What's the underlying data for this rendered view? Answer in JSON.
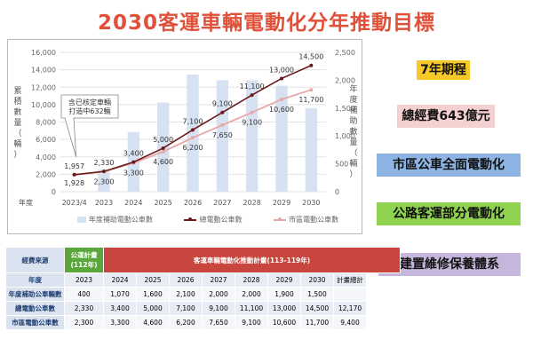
{
  "title": "2030客運車輛電動化分年推動目標",
  "side_labels": [
    "7年期程",
    "總經費643億元",
    "市區公車全面電動化",
    "公路客運部分電動化",
    "建置維修保養體系"
  ],
  "chart_data": {
    "type": "bar+line",
    "categories": [
      "2023/4",
      "2023",
      "2024",
      "2025",
      "2026",
      "2027",
      "2028",
      "2029",
      "2030"
    ],
    "xlabel": "年度",
    "ylabel": "累積數量（輛）",
    "y2label": "年度補助數量（輛）",
    "ylim": [
      0,
      16000
    ],
    "y2lim": [
      0,
      2500
    ],
    "yticks": [
      "0",
      "2,000",
      "4,000",
      "6,000",
      "8,000",
      "10,000",
      "12,000",
      "14,000",
      "16,000"
    ],
    "y2ticks": [
      "0",
      "500",
      "1,000",
      "1,500",
      "2,000",
      "2,500"
    ],
    "series": [
      {
        "name": "年度補助電動公車數",
        "kind": "bar",
        "axis": "right",
        "color": "#d6e1f1",
        "values": [
          null,
          400,
          1070,
          1600,
          2100,
          2000,
          2000,
          1900,
          1500
        ]
      },
      {
        "name": "總電動公車數",
        "kind": "line",
        "axis": "left",
        "color": "#6b1a1a",
        "values": [
          1957,
          2330,
          3400,
          5000,
          7100,
          9100,
          11100,
          13000,
          14500
        ],
        "labels": [
          "1,957",
          "2,330",
          "3,400",
          "5,000",
          "7,100",
          "9,100",
          "11,100",
          "13,000",
          "14,500"
        ]
      },
      {
        "name": "市區電動公車數",
        "kind": "line",
        "axis": "left",
        "color": "#e8a7a7",
        "values": [
          1928,
          2300,
          3300,
          4600,
          6200,
          7650,
          9100,
          10600,
          11700
        ],
        "labels": [
          "1,928",
          "2,300",
          "3,300",
          "4,600",
          "6,200",
          "7,650",
          "9,100",
          "10,600",
          "11,700"
        ]
      }
    ],
    "callout": "含已核定車輛\n打造中632輛",
    "grid": true,
    "legend_position": "bottom"
  },
  "table": {
    "header": {
      "source": "經費來源",
      "plan_a": "公運計畫\n(112年)",
      "plan_b": "客運車輛電動化推動計畫(113-119年)"
    },
    "year_row": {
      "label": "年度",
      "values": [
        "2023",
        "2024",
        "2025",
        "2026",
        "2027",
        "2028",
        "2029",
        "2030",
        "計畫總計"
      ]
    },
    "rows": [
      {
        "label": "年度補助公車輛數",
        "values": [
          "400",
          "1,070",
          "1,600",
          "2,100",
          "2,000",
          "2,000",
          "1,900",
          "1,500",
          ""
        ]
      },
      {
        "label": "總電動公車數",
        "values": [
          "2,330",
          "3,400",
          "5,000",
          "7,100",
          "9,100",
          "11,100",
          "13,000",
          "14,500",
          "12,170"
        ]
      },
      {
        "label": "市區電動公車數",
        "values": [
          "2,300",
          "3,300",
          "4,600",
          "6,200",
          "7,650",
          "9,100",
          "10,600",
          "11,700",
          "9,400"
        ]
      }
    ]
  }
}
